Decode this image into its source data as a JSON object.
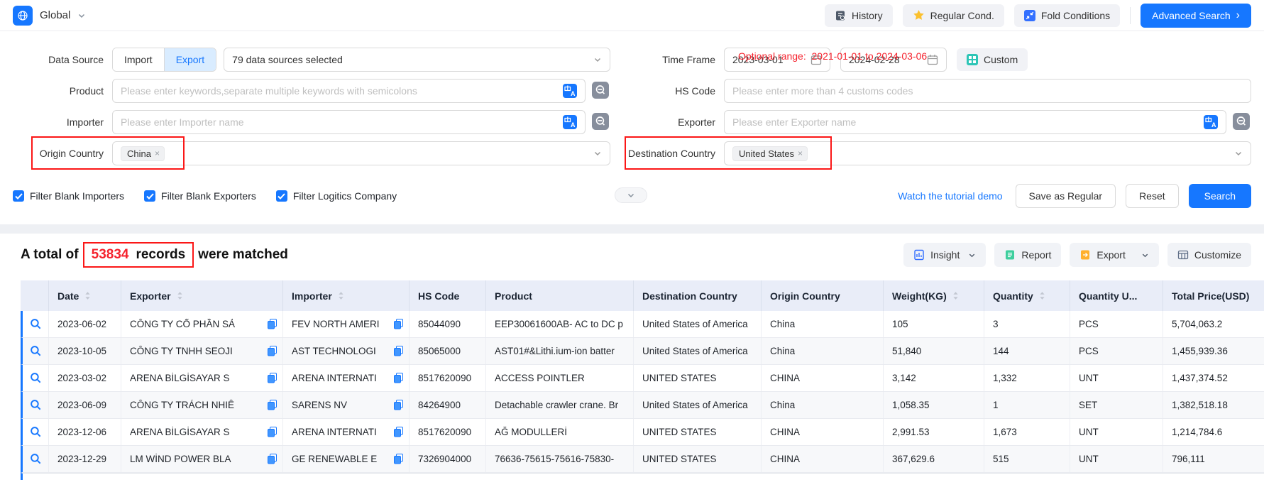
{
  "colors": {
    "accent": "#1677ff",
    "red": "#f5222d",
    "header_bg": "#e9edf8",
    "band": "#eef0f4"
  },
  "topbar": {
    "region": "Global",
    "history": "History",
    "regular_cond": "Regular Cond.",
    "fold_conditions": "Fold Conditions",
    "advanced_search": "Advanced Search",
    "advanced_arrow": "›"
  },
  "filters": {
    "optional_range_label": "Optional range:",
    "optional_range_value": "2021-01-01 to 2024-03-06",
    "data_source": {
      "label": "Data Source",
      "import_tab": "Import",
      "export_tab": "Export",
      "selected": "79 data sources selected"
    },
    "time_frame": {
      "label": "Time Frame",
      "from": "2023-03-01",
      "to": "2024-02-28",
      "custom": "Custom"
    },
    "product": {
      "label": "Product",
      "placeholder": "Please enter keywords,separate multiple keywords with semicolons"
    },
    "hs_code": {
      "label": "HS Code",
      "placeholder": "Please enter more than 4 customs codes"
    },
    "importer": {
      "label": "Importer",
      "placeholder": "Please enter Importer name"
    },
    "exporter": {
      "label": "Exporter",
      "placeholder": "Please enter Exporter name"
    },
    "origin_country": {
      "label": "Origin Country",
      "tag": "China",
      "remove": "×"
    },
    "destination_country": {
      "label": "Destination Country",
      "tag": "United States",
      "remove": "×"
    },
    "checkboxes": [
      {
        "label": "Filter Blank Importers",
        "checked": true
      },
      {
        "label": "Filter Blank Exporters",
        "checked": true
      },
      {
        "label": "Filter Logitics Company",
        "checked": true
      }
    ],
    "tutorial_link": "Watch the tutorial demo",
    "save_as_regular": "Save as Regular",
    "reset": "Reset",
    "search": "Search"
  },
  "results": {
    "summary": {
      "prefix": "A total of",
      "count": "53834",
      "records_word": "records",
      "suffix": "were matched"
    },
    "toolbar": {
      "insight": "Insight",
      "report": "Report",
      "export": "Export",
      "customize": "Customize"
    },
    "table": {
      "columns": [
        {
          "id": "",
          "label": "",
          "sortable": false
        },
        {
          "id": "date",
          "label": "Date",
          "sortable": true
        },
        {
          "id": "exporter",
          "label": "Exporter",
          "sortable": true,
          "copy": true
        },
        {
          "id": "importer",
          "label": "Importer",
          "sortable": true,
          "copy": true
        },
        {
          "id": "hs_code",
          "label": "HS Code",
          "sortable": false
        },
        {
          "id": "product",
          "label": "Product",
          "sortable": false
        },
        {
          "id": "destination",
          "label": "Destination Country",
          "sortable": false
        },
        {
          "id": "origin",
          "label": "Origin Country",
          "sortable": false
        },
        {
          "id": "weight",
          "label": "Weight(KG)",
          "sortable": true
        },
        {
          "id": "quantity",
          "label": "Quantity",
          "sortable": true
        },
        {
          "id": "quantity_unit",
          "label": "Quantity U...",
          "sortable": false
        },
        {
          "id": "total_price",
          "label": "Total Price(USD)",
          "sortable": false
        }
      ],
      "rows": [
        {
          "date": "2023-06-02",
          "exporter": "CÔNG TY CỔ PHẦN SẢ",
          "importer": "FEV NORTH AMERI",
          "hs_code": "85044090",
          "product": "EEP30061600AB- AC to DC p",
          "destination": "United States of America",
          "origin": "China",
          "weight": "105",
          "quantity": "3",
          "quantity_unit": "PCS",
          "total_price": "5,704,063.2"
        },
        {
          "date": "2023-10-05",
          "exporter": "CÔNG TY TNHH SEOJI",
          "importer": "AST TECHNOLOGI",
          "hs_code": "85065000",
          "product": "AST01#&Lithi.ium-ion batter",
          "destination": "United States of America",
          "origin": "China",
          "weight": "51,840",
          "quantity": "144",
          "quantity_unit": "PCS",
          "total_price": "1,455,939.36"
        },
        {
          "date": "2023-03-02",
          "exporter": "ARENA BİLGİSAYAR S",
          "importer": "ARENA INTERNATI",
          "hs_code": "8517620090",
          "product": "ACCESS POINTLER",
          "destination": "UNITED STATES",
          "origin": "CHINA",
          "weight": "3,142",
          "quantity": "1,332",
          "quantity_unit": "UNT",
          "total_price": "1,437,374.52"
        },
        {
          "date": "2023-06-09",
          "exporter": "CÔNG TY TRÁCH NHIÊ",
          "importer": "SARENS NV",
          "hs_code": "84264900",
          "product": "Detachable crawler crane. Br",
          "destination": "United States of America",
          "origin": "China",
          "weight": "1,058.35",
          "quantity": "1",
          "quantity_unit": "SET",
          "total_price": "1,382,518.18"
        },
        {
          "date": "2023-12-06",
          "exporter": "ARENA BİLGİSAYAR S",
          "importer": "ARENA INTERNATI",
          "hs_code": "8517620090",
          "product": "AĞ MODULLERİ",
          "destination": "UNITED STATES",
          "origin": "CHINA",
          "weight": "2,991.53",
          "quantity": "1,673",
          "quantity_unit": "UNT",
          "total_price": "1,214,784.6"
        },
        {
          "date": "2023-12-29",
          "exporter": "LM WİND POWER BLA",
          "importer": "GE RENEWABLE E",
          "hs_code": "7326904000",
          "product": "76636-75615-75616-75830-",
          "destination": "UNITED STATES",
          "origin": "CHINA",
          "weight": "367,629.6",
          "quantity": "515",
          "quantity_unit": "UNT",
          "total_price": "796,111"
        }
      ]
    }
  }
}
